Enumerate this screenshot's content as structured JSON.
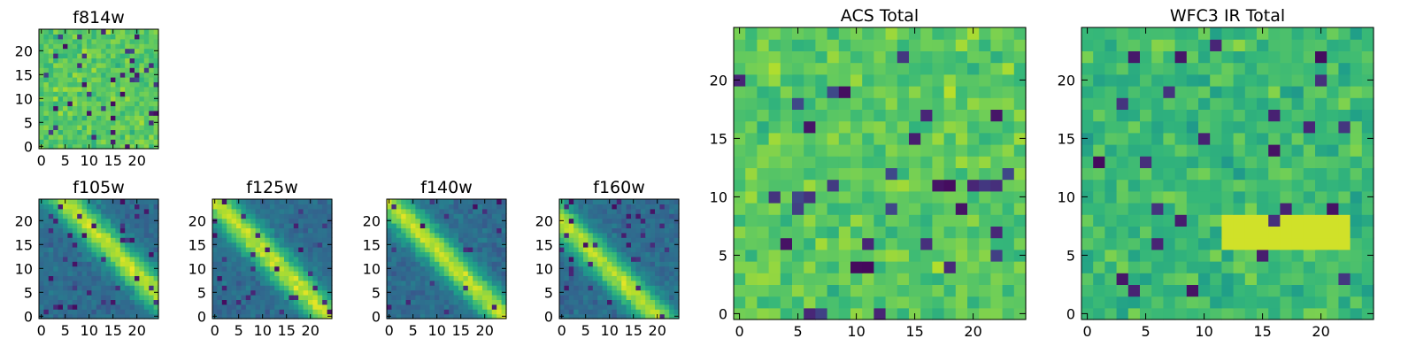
{
  "chart_data": [
    {
      "type": "heatmap",
      "title": "f814w",
      "xticks": [
        "0",
        "5",
        "10",
        "15",
        "20"
      ],
      "yticks": [
        "0",
        "5",
        "10",
        "15",
        "20"
      ],
      "xlim": [
        0,
        24
      ],
      "ylim": [
        0,
        24
      ],
      "grid": false,
      "colormap": "viridis",
      "pattern": "noise"
    },
    {
      "type": "heatmap",
      "title": "f105w",
      "xticks": [
        "0",
        "5",
        "10",
        "15",
        "20"
      ],
      "yticks": [
        "0",
        "5",
        "10",
        "15",
        "20"
      ],
      "xlim": [
        0,
        24
      ],
      "ylim": [
        0,
        24
      ],
      "grid": false,
      "colormap": "viridis",
      "pattern": "diagonal-upper"
    },
    {
      "type": "heatmap",
      "title": "f125w",
      "xticks": [
        "0",
        "5",
        "10",
        "15",
        "20"
      ],
      "yticks": [
        "0",
        "5",
        "10",
        "15",
        "20"
      ],
      "xlim": [
        0,
        24
      ],
      "ylim": [
        0,
        24
      ],
      "grid": false,
      "colormap": "viridis",
      "pattern": "diagonal"
    },
    {
      "type": "heatmap",
      "title": "f140w",
      "xticks": [
        "0",
        "5",
        "10",
        "15",
        "20"
      ],
      "yticks": [
        "0",
        "5",
        "10",
        "15",
        "20"
      ],
      "xlim": [
        0,
        24
      ],
      "ylim": [
        0,
        24
      ],
      "grid": false,
      "colormap": "viridis",
      "pattern": "diagonal"
    },
    {
      "type": "heatmap",
      "title": "f160w",
      "xticks": [
        "0",
        "5",
        "10",
        "15",
        "20"
      ],
      "yticks": [
        "0",
        "5",
        "10",
        "15",
        "20"
      ],
      "xlim": [
        0,
        24
      ],
      "ylim": [
        0,
        24
      ],
      "grid": false,
      "colormap": "viridis",
      "pattern": "diagonal-lower"
    },
    {
      "type": "heatmap",
      "title": "ACS Total",
      "xticks": [
        "0",
        "5",
        "10",
        "15",
        "20"
      ],
      "yticks": [
        "0",
        "5",
        "10",
        "15",
        "20"
      ],
      "xlim": [
        0,
        24
      ],
      "ylim": [
        0,
        24
      ],
      "grid": false,
      "colormap": "viridis",
      "pattern": "noise"
    },
    {
      "type": "heatmap",
      "title": "WFC3 IR Total",
      "xticks": [
        "0",
        "5",
        "10",
        "15",
        "20"
      ],
      "yticks": [
        "0",
        "5",
        "10",
        "15",
        "20"
      ],
      "xlim": [
        0,
        24
      ],
      "ylim": [
        0,
        24
      ],
      "grid": false,
      "colormap": "viridis",
      "pattern": "noise-band"
    }
  ]
}
